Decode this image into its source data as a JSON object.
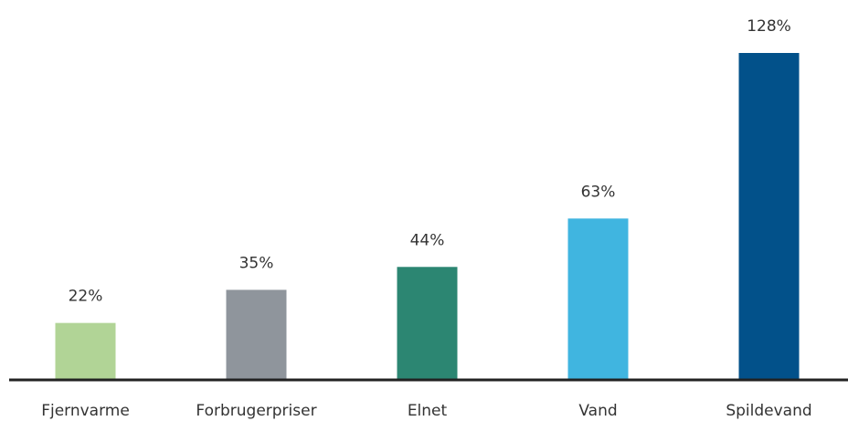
{
  "chart_data": {
    "type": "bar",
    "categories": [
      "Fjernvarme",
      "Forbrugerpriser",
      "Elnet",
      "Vand",
      "Spildevand"
    ],
    "values": [
      22,
      35,
      44,
      63,
      128
    ],
    "value_labels": [
      "22%",
      "35%",
      "44%",
      "63%",
      "128%"
    ],
    "colors": [
      "#b1d496",
      "#8f959c",
      "#2c8672",
      "#40b5e0",
      "#02518a"
    ]
  }
}
